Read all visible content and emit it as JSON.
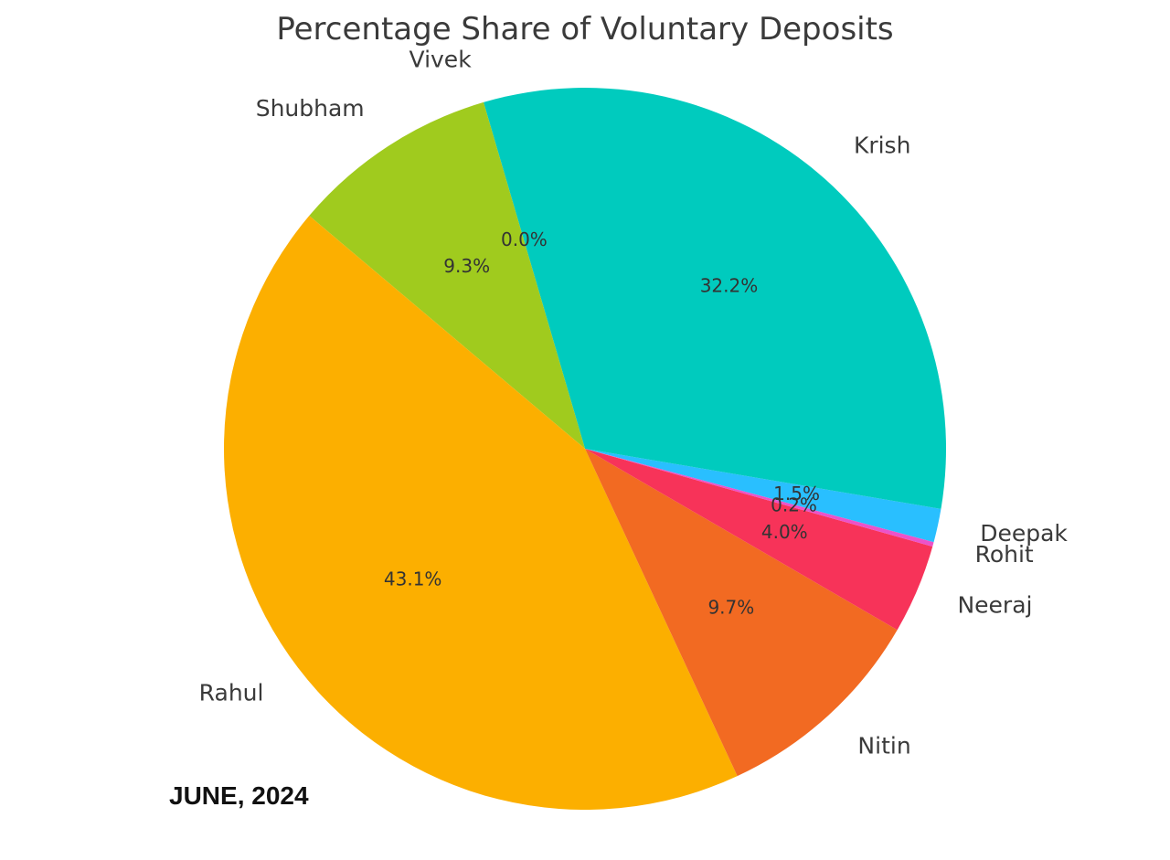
{
  "chart_data": {
    "type": "pie",
    "title": "Percentage Share of Voluntary Deposits",
    "start_angle_deg": -15,
    "direction": "counterclockwise",
    "slices": [
      {
        "label": "Deepak",
        "value": 1.5,
        "pct_label": "1.5%",
        "color": "#29BFFF"
      },
      {
        "label": "Krish",
        "value": 32.2,
        "pct_label": "32.2%",
        "color": "#00CBBE"
      },
      {
        "label": "Vivek",
        "value": 0.0,
        "pct_label": "0.0%",
        "color": "#8E44AD"
      },
      {
        "label": "Shubham",
        "value": 9.3,
        "pct_label": "9.3%",
        "color": "#A0CB1E"
      },
      {
        "label": "Rahul",
        "value": 43.1,
        "pct_label": "43.1%",
        "color": "#FCAF00"
      },
      {
        "label": "Nitin",
        "value": 9.7,
        "pct_label": "9.7%",
        "color": "#F26A22"
      },
      {
        "label": "Neeraj",
        "value": 4.0,
        "pct_label": "4.0%",
        "color": "#F73359"
      },
      {
        "label": "Rohit",
        "value": 0.2,
        "pct_label": "0.2%",
        "color": "#EC52C9"
      }
    ]
  },
  "caption": "JUNE, 2024"
}
